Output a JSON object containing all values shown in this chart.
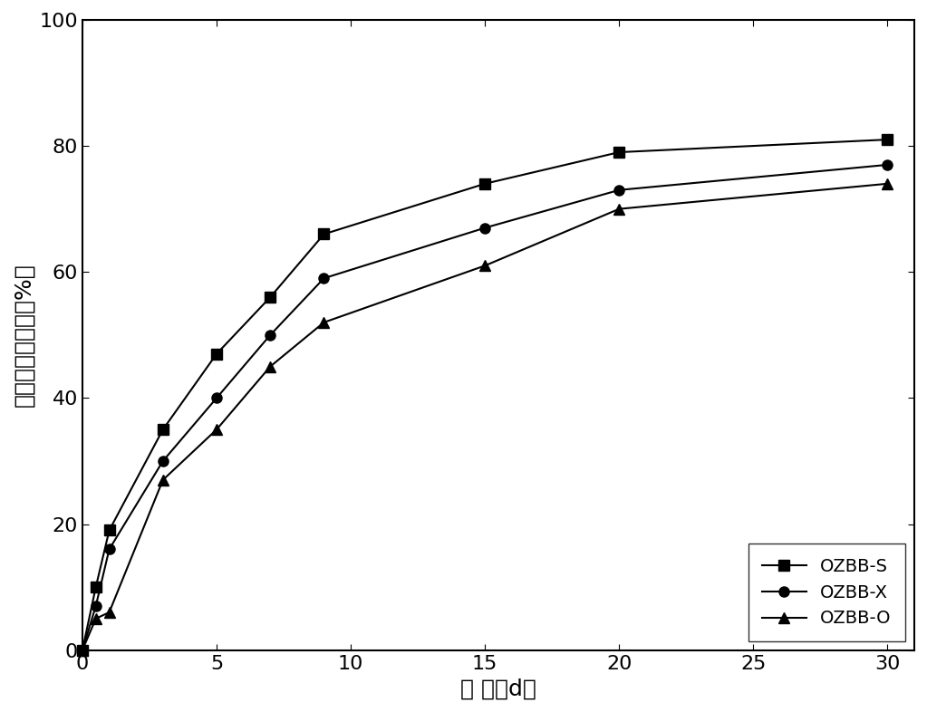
{
  "series": [
    {
      "label": "OZBB-S",
      "marker": "s",
      "x": [
        0,
        0.5,
        1,
        3,
        5,
        7,
        9,
        15,
        20,
        30
      ],
      "y": [
        0,
        10,
        19,
        35,
        47,
        56,
        66,
        74,
        79,
        81
      ]
    },
    {
      "label": "OZBB-X",
      "marker": "o",
      "x": [
        0,
        0.5,
        1,
        3,
        5,
        7,
        9,
        15,
        20,
        30
      ],
      "y": [
        0,
        7,
        16,
        30,
        40,
        50,
        59,
        67,
        73,
        77
      ]
    },
    {
      "label": "OZBB-O",
      "marker": "^",
      "x": [
        0,
        0.5,
        1,
        3,
        5,
        7,
        9,
        15,
        20,
        30
      ],
      "y": [
        0,
        5,
        6,
        27,
        35,
        45,
        52,
        61,
        70,
        74
      ]
    }
  ],
  "xlabel": "时 间（d）",
  "ylabel": "三氯联苯去除率（%）",
  "xlim": [
    0,
    31
  ],
  "ylim": [
    0,
    100
  ],
  "xticks": [
    0,
    5,
    10,
    15,
    20,
    25,
    30
  ],
  "yticks": [
    0,
    20,
    40,
    60,
    80,
    100
  ],
  "line_color": "#000000",
  "marker_fill": "#000000",
  "marker_size": 8,
  "line_width": 1.5,
  "legend_loc": "lower right",
  "background_color": "#ffffff",
  "figure_bg": "#ffffff",
  "tick_fontsize": 16,
  "label_fontsize": 18,
  "legend_fontsize": 14
}
